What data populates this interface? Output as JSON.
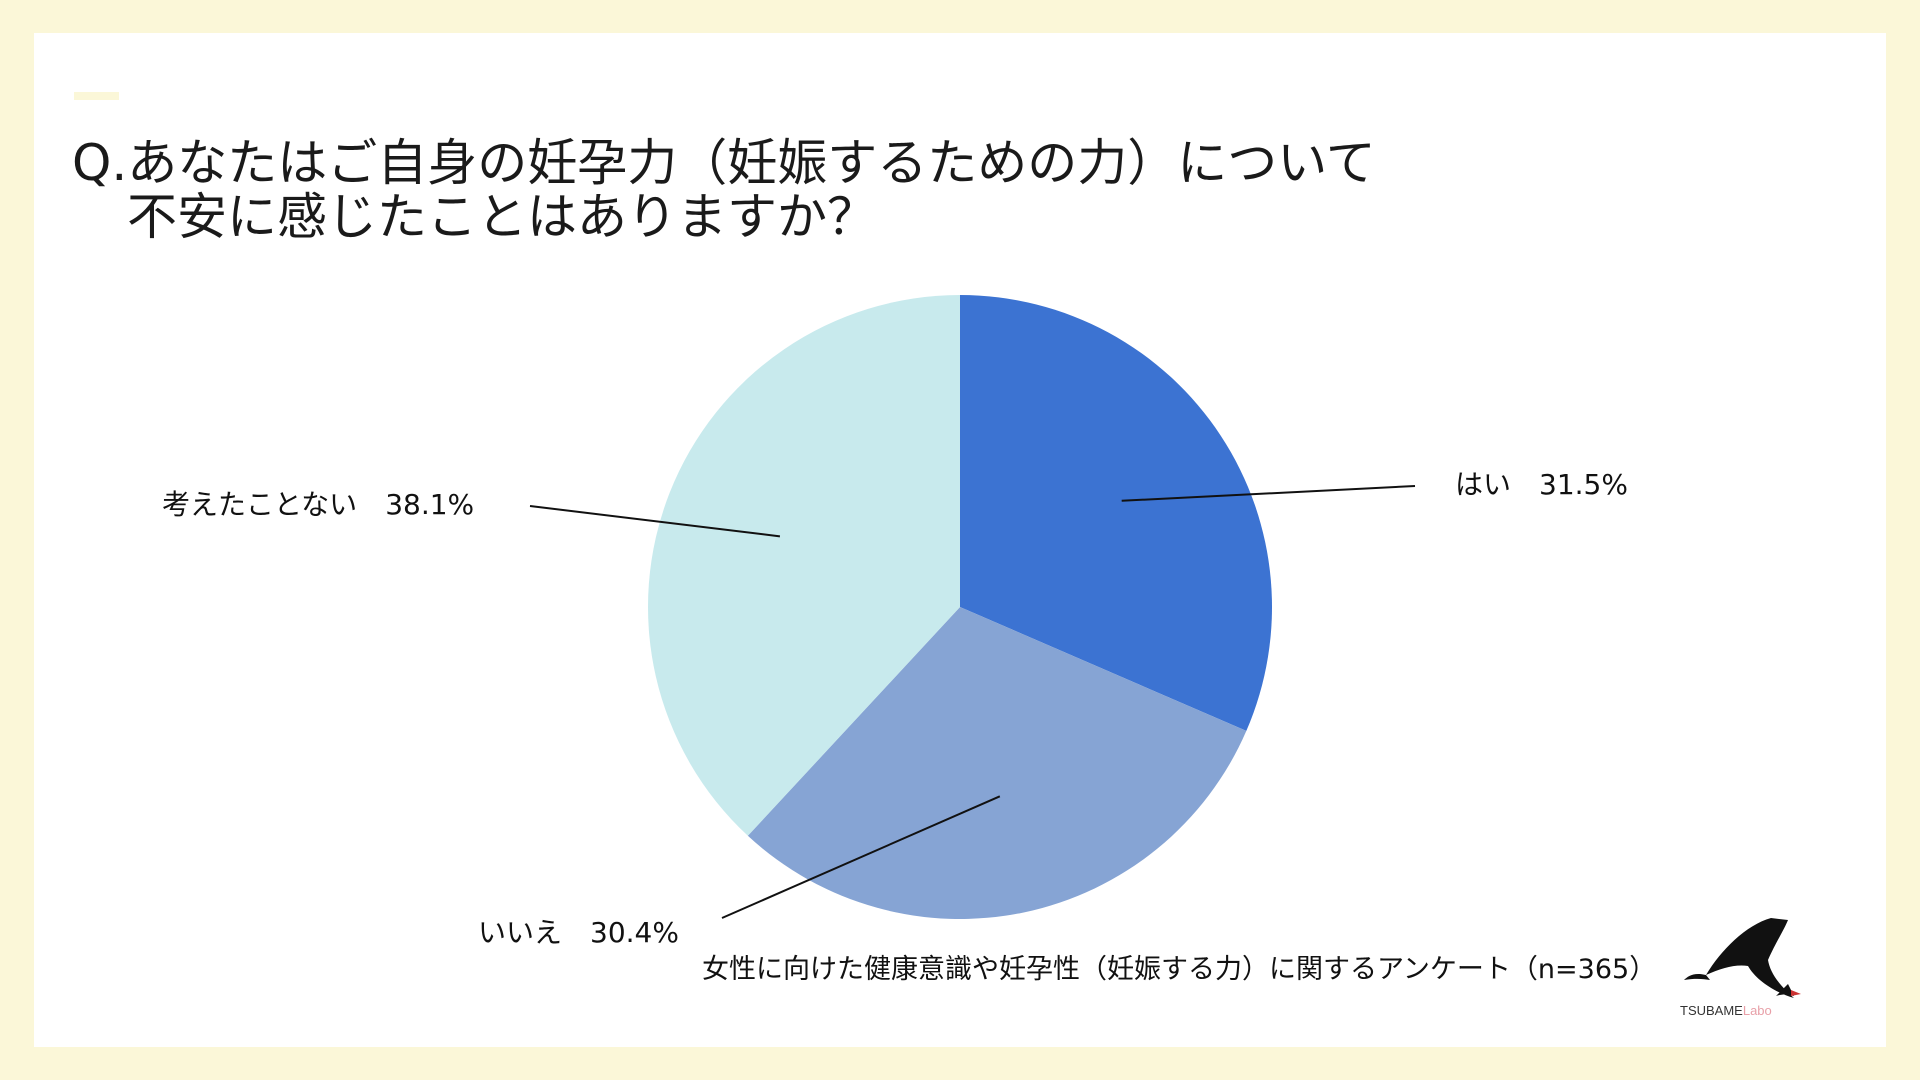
{
  "title": {
    "line1": "Q.あなたはご自身の妊孕力（妊娠するための力）について",
    "line2": "不安に感じたことはありますか？"
  },
  "footnote": "女性に向けた健康意識や妊孕性（妊娠する力）に関するアンケート（n=365）",
  "logo": {
    "name": "TSUBAME",
    "suffix": "Labo"
  },
  "chart_data": {
    "type": "pie",
    "slices": [
      {
        "label": "はい",
        "value_label": "31.5%",
        "value": 31.5,
        "color": "#3c73d2"
      },
      {
        "label": "いいえ",
        "value_label": "30.4%",
        "value": 30.4,
        "color": "#86a4d4"
      },
      {
        "label": "考えたことない",
        "value_label": "38.1%",
        "value": 38.1,
        "color": "#c8eaed"
      }
    ],
    "start_angle_deg": 0,
    "direction": "clockwise"
  },
  "colors": {
    "background": "#fbf7d8",
    "card": "#ffffff"
  }
}
